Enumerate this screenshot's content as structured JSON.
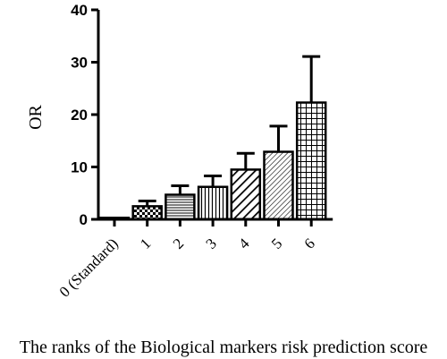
{
  "chart_data": {
    "type": "bar",
    "title": "",
    "xlabel": "The ranks of the Biological markers risk prediction score",
    "ylabel": "OR",
    "ylim": [
      0,
      40
    ],
    "yticks": [
      0,
      10,
      20,
      30,
      40
    ],
    "grid": false,
    "categories": [
      "0 (Standard)",
      "1",
      "2",
      "3",
      "4",
      "5",
      "6"
    ],
    "values": [
      0.3,
      2.5,
      4.7,
      6.2,
      9.5,
      12.9,
      22.3
    ],
    "error_upper": [
      0.3,
      3.5,
      6.4,
      8.3,
      12.6,
      17.8,
      31.1
    ],
    "patterns": [
      "solid",
      "checker",
      "horizontal",
      "vertical",
      "diagonal-wide",
      "diagonal-dense",
      "grid"
    ]
  }
}
